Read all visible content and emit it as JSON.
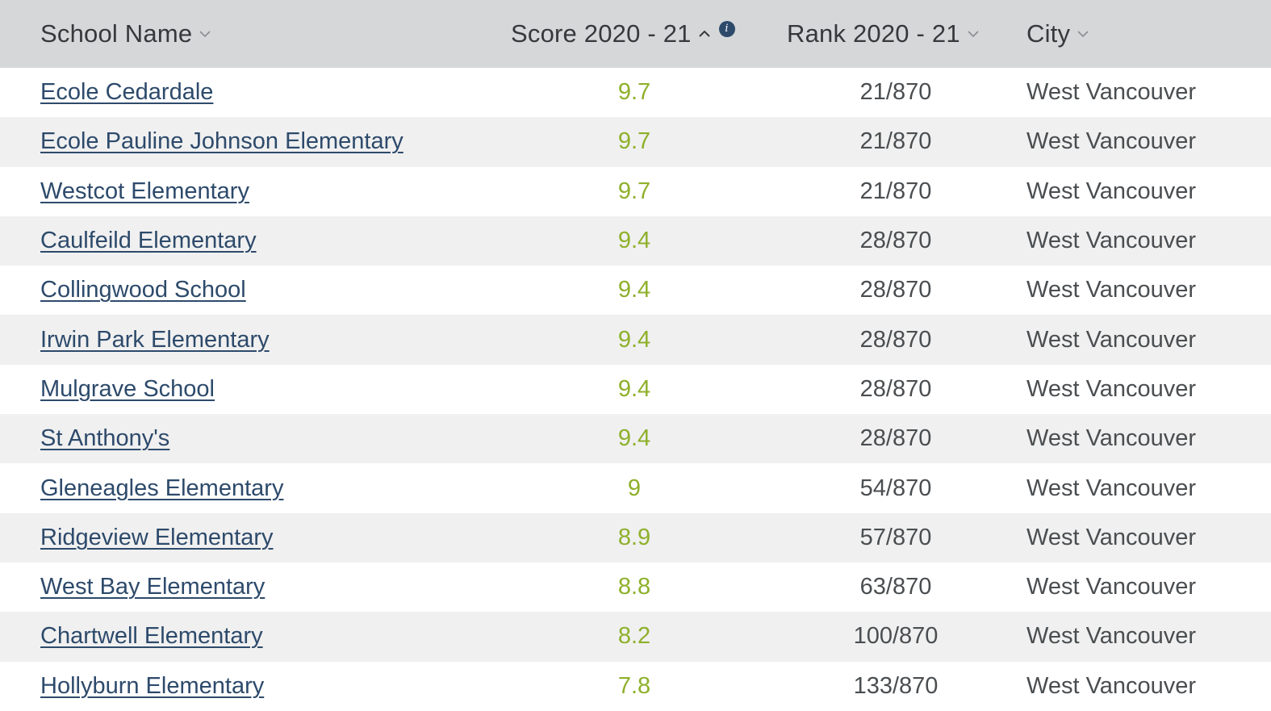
{
  "header": {
    "school_name": "School Name",
    "score": "Score 2020 - 21",
    "rank": "Rank 2020 - 21",
    "city": "City",
    "info_icon": "info-icon",
    "sort_icon_asc": "chevron-up-icon",
    "sort_icon_desc": "chevron-down-icon"
  },
  "colors": {
    "header_bg": "#d6d7d8",
    "link": "#2d4a6b",
    "score": "#8eb02a",
    "text": "#4a4e51",
    "row_alt": "#f0f0f0"
  },
  "rows": [
    {
      "name": "Ecole Cedardale",
      "score": "9.7",
      "rank": "21/870",
      "city": "West Vancouver"
    },
    {
      "name": "Ecole Pauline Johnson Elementary",
      "score": "9.7",
      "rank": "21/870",
      "city": "West Vancouver"
    },
    {
      "name": "Westcot Elementary",
      "score": "9.7",
      "rank": "21/870",
      "city": "West Vancouver"
    },
    {
      "name": "Caulfeild Elementary",
      "score": "9.4",
      "rank": "28/870",
      "city": "West Vancouver"
    },
    {
      "name": "Collingwood School",
      "score": "9.4",
      "rank": "28/870",
      "city": "West Vancouver"
    },
    {
      "name": "Irwin Park Elementary",
      "score": "9.4",
      "rank": "28/870",
      "city": "West Vancouver"
    },
    {
      "name": "Mulgrave School",
      "score": "9.4",
      "rank": "28/870",
      "city": "West Vancouver"
    },
    {
      "name": "St Anthony's",
      "score": "9.4",
      "rank": "28/870",
      "city": "West Vancouver"
    },
    {
      "name": "Gleneagles Elementary",
      "score": "9",
      "rank": "54/870",
      "city": "West Vancouver"
    },
    {
      "name": "Ridgeview Elementary",
      "score": "8.9",
      "rank": "57/870",
      "city": "West Vancouver"
    },
    {
      "name": "West Bay Elementary",
      "score": "8.8",
      "rank": "63/870",
      "city": "West Vancouver"
    },
    {
      "name": "Chartwell Elementary",
      "score": "8.2",
      "rank": "100/870",
      "city": "West Vancouver"
    },
    {
      "name": "Hollyburn Elementary",
      "score": "7.8",
      "rank": "133/870",
      "city": "West Vancouver"
    }
  ]
}
